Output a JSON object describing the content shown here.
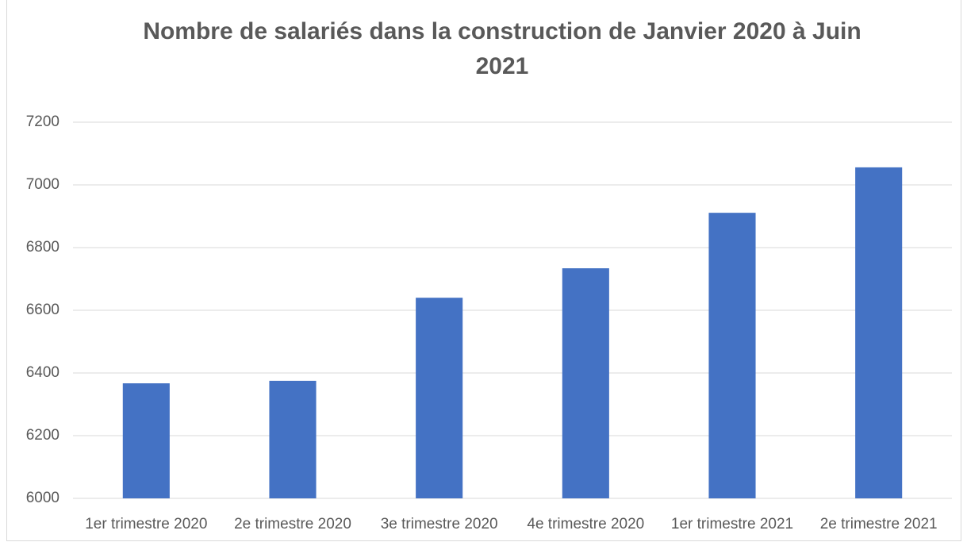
{
  "chart_data": {
    "type": "bar",
    "title": "Nombre de salariés dans la construction de Janvier 2020 à Juin 2021",
    "categories": [
      "1er trimestre 2020",
      "2e trimestre 2020",
      "3e trimestre 2020",
      "4e trimestre 2020",
      "1er trimestre 2021",
      "2e trimestre 2021"
    ],
    "values": [
      6367,
      6375,
      6640,
      6734,
      6911,
      7056
    ],
    "color": "#4472c4",
    "ylim": [
      6000,
      7200
    ],
    "yticks": [
      6000,
      6200,
      6400,
      6600,
      6800,
      7000,
      7200
    ],
    "grid": true
  }
}
